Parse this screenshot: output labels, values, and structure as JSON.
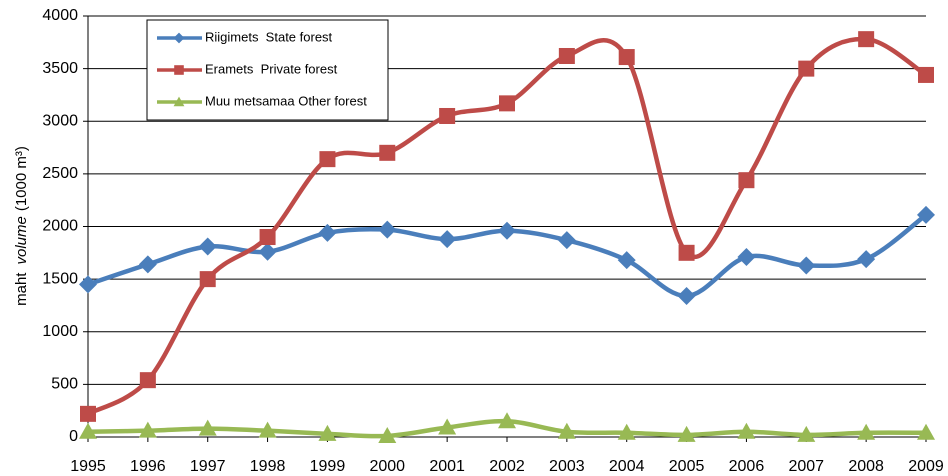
{
  "chart_data": {
    "type": "line",
    "y_label": [
      "maht",
      "volume",
      "(1000 m³)"
    ],
    "categories": [
      "1995",
      "1996",
      "1997",
      "1998",
      "1999",
      "2000",
      "2001",
      "2002",
      "2003",
      "2004",
      "2005",
      "2006",
      "2007",
      "2008",
      "2009"
    ],
    "series": [
      {
        "name": "Riigimets  State forest",
        "color": "#4a7ebb",
        "marker": "diamond",
        "values": [
          1450,
          1640,
          1810,
          1760,
          1940,
          1970,
          1880,
          1960,
          1870,
          1680,
          1340,
          1710,
          1630,
          1690,
          2110
        ]
      },
      {
        "name": "Eramets  Private forest",
        "color": "#be4b48",
        "marker": "square",
        "values": [
          220,
          540,
          1500,
          1900,
          2640,
          2700,
          3050,
          3170,
          3620,
          3610,
          1750,
          2440,
          3500,
          3780,
          3440
        ]
      },
      {
        "name": "Muu metsamaa Other forest",
        "color": "#98b954",
        "marker": "triangle",
        "values": [
          50,
          60,
          80,
          60,
          30,
          10,
          90,
          150,
          50,
          40,
          20,
          50,
          20,
          40,
          40
        ]
      }
    ],
    "ylim": [
      0,
      4000
    ],
    "yticks": [
      0,
      500,
      1000,
      1500,
      2000,
      2500,
      3000,
      3500,
      4000
    ],
    "grid": true,
    "smooth": true,
    "legend": "top-left"
  }
}
